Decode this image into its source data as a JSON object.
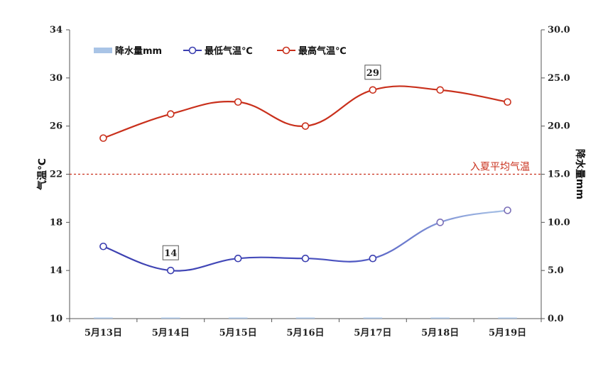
{
  "chart_data": {
    "type": "line",
    "categories": [
      "5月13日",
      "5月14日",
      "5月15日",
      "5月16日",
      "5月17日",
      "5月18日",
      "5月19日"
    ],
    "series": [
      {
        "name": "降水量mm",
        "kind": "bar",
        "axis": "right",
        "values": [
          0,
          0,
          0,
          0,
          0,
          0,
          0
        ],
        "color": "#a9c4e6"
      },
      {
        "name": "最低气温℃",
        "kind": "line",
        "axis": "left",
        "values": [
          16,
          14,
          15,
          15,
          15,
          18,
          19
        ],
        "color": "#3b3fb0",
        "gradient_end_color": "#a9c4e6"
      },
      {
        "name": "最高气温℃",
        "kind": "line",
        "axis": "left",
        "values": [
          25,
          27,
          28,
          26,
          29,
          29,
          28
        ],
        "color": "#c9301c"
      }
    ],
    "ylabel_left": "气温℃",
    "ylabel_right": "降水量mm",
    "yticks_left": [
      "10",
      "14",
      "18",
      "22",
      "26",
      "30",
      "34"
    ],
    "yticks_right": [
      "0.0",
      "5.0",
      "10.0",
      "15.0",
      "20.0",
      "25.0",
      "30.0"
    ],
    "ylim_left": [
      10,
      34
    ],
    "ylim_right": [
      0,
      30
    ],
    "reference_line": {
      "label": "入夏平均气温",
      "value": 22,
      "color": "#c9301c"
    },
    "data_labels": [
      {
        "series": "最低气温℃",
        "category": "5月14日",
        "text": "14"
      },
      {
        "series": "最高气温℃",
        "category": "5月17日",
        "text": "29"
      }
    ],
    "legend_position": "top-left",
    "grid": false
  }
}
